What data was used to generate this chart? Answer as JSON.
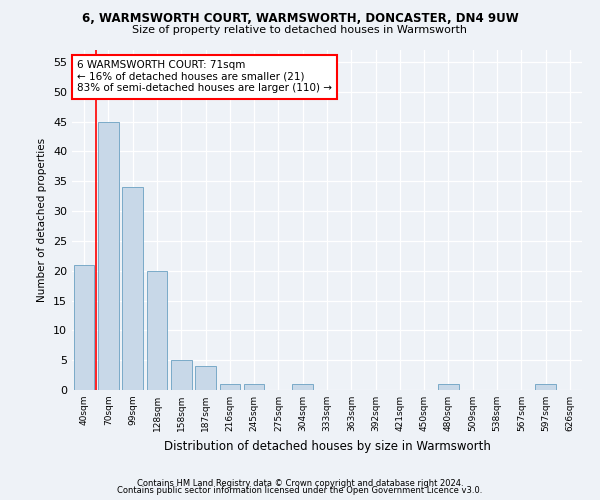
{
  "title1": "6, WARMSWORTH COURT, WARMSWORTH, DONCASTER, DN4 9UW",
  "title2": "Size of property relative to detached houses in Warmsworth",
  "xlabel": "Distribution of detached houses by size in Warmsworth",
  "ylabel": "Number of detached properties",
  "bar_color": "#c8d8e8",
  "bar_edge_color": "#7aaac8",
  "categories": [
    "40sqm",
    "70sqm",
    "99sqm",
    "128sqm",
    "158sqm",
    "187sqm",
    "216sqm",
    "245sqm",
    "275sqm",
    "304sqm",
    "333sqm",
    "363sqm",
    "392sqm",
    "421sqm",
    "450sqm",
    "480sqm",
    "509sqm",
    "538sqm",
    "567sqm",
    "597sqm",
    "626sqm"
  ],
  "values": [
    21,
    45,
    34,
    20,
    5,
    4,
    1,
    1,
    0,
    1,
    0,
    0,
    0,
    0,
    0,
    1,
    0,
    0,
    0,
    1,
    0
  ],
  "ylim": [
    0,
    57
  ],
  "yticks": [
    0,
    5,
    10,
    15,
    20,
    25,
    30,
    35,
    40,
    45,
    50,
    55
  ],
  "property_line_x": 0.5,
  "annotation_text": "6 WARMSWORTH COURT: 71sqm\n← 16% of detached houses are smaller (21)\n83% of semi-detached houses are larger (110) →",
  "annotation_box_color": "white",
  "annotation_box_edge": "red",
  "footer1": "Contains HM Land Registry data © Crown copyright and database right 2024.",
  "footer2": "Contains public sector information licensed under the Open Government Licence v3.0.",
  "background_color": "#eef2f7",
  "grid_color": "#ffffff"
}
